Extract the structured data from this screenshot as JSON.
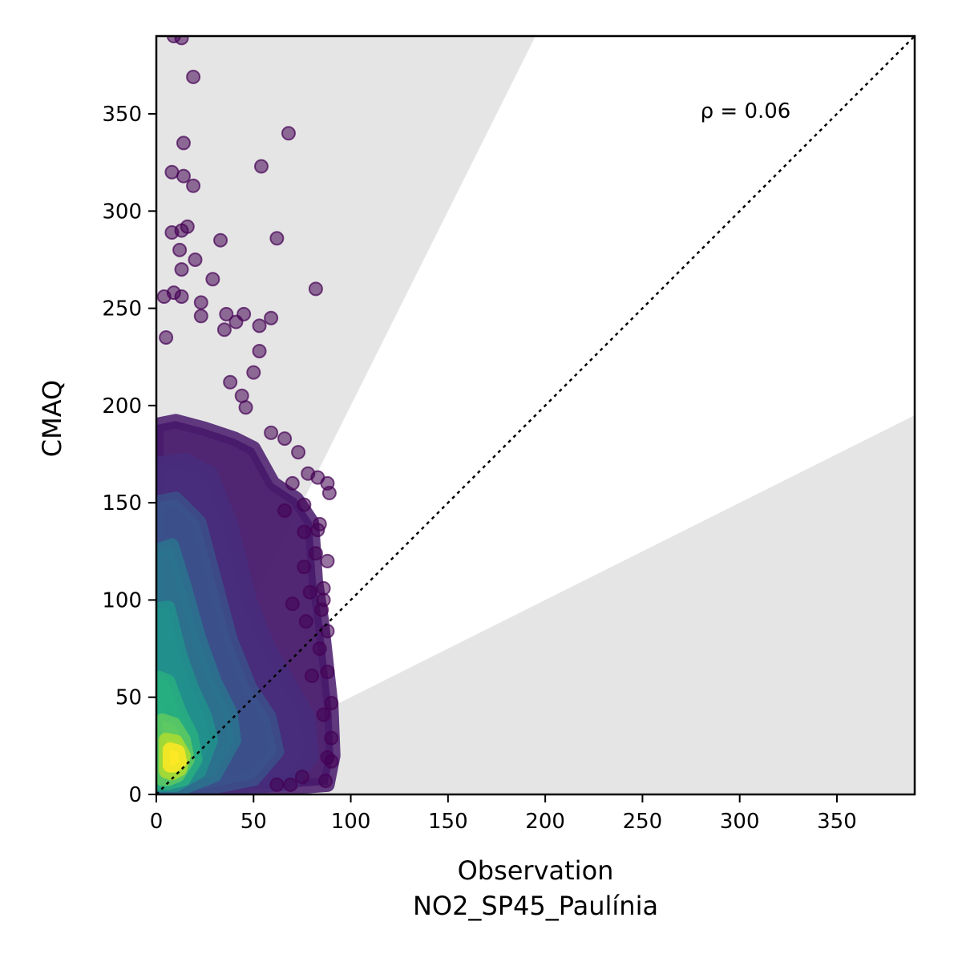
{
  "chart_data": {
    "type": "scatter",
    "title": "",
    "xlabel": "Observation",
    "xlabel_sub": "NO2_SP45_Paulínia",
    "ylabel": "CMAQ",
    "xlim": [
      0,
      390
    ],
    "ylim": [
      0,
      390
    ],
    "xticks": [
      0,
      50,
      100,
      150,
      200,
      250,
      300,
      350
    ],
    "yticks": [
      0,
      50,
      100,
      150,
      200,
      250,
      300,
      350
    ],
    "xtick_labels": [
      "0",
      "50",
      "100",
      "150",
      "200",
      "250",
      "300",
      "350"
    ],
    "ytick_labels": [
      "0",
      "50",
      "100",
      "150",
      "200",
      "250",
      "300",
      "350"
    ],
    "grid": false,
    "annotation": "ρ = 0.06",
    "reference_line": {
      "style": "dotted",
      "slope": 1,
      "label": ""
    },
    "shaded_regions": {
      "description": "outside factor-of-2 band",
      "upper_slope": 2,
      "lower_slope": 0.5,
      "color": "#e5e5e5"
    },
    "colormap": "viridis",
    "point_color_low_density": "#440154",
    "point_color_high_density": "#fde725",
    "outlier_points": [
      {
        "x": 9,
        "y": 390
      },
      {
        "x": 13,
        "y": 389
      },
      {
        "x": 19,
        "y": 369
      },
      {
        "x": 68,
        "y": 340
      },
      {
        "x": 14,
        "y": 335
      },
      {
        "x": 54,
        "y": 323
      },
      {
        "x": 8,
        "y": 320
      },
      {
        "x": 14,
        "y": 318
      },
      {
        "x": 19,
        "y": 313
      },
      {
        "x": 16,
        "y": 292
      },
      {
        "x": 13,
        "y": 290
      },
      {
        "x": 8,
        "y": 289
      },
      {
        "x": 62,
        "y": 286
      },
      {
        "x": 33,
        "y": 285
      },
      {
        "x": 12,
        "y": 280
      },
      {
        "x": 20,
        "y": 275
      },
      {
        "x": 13,
        "y": 270
      },
      {
        "x": 29,
        "y": 265
      },
      {
        "x": 82,
        "y": 260
      },
      {
        "x": 4,
        "y": 256
      },
      {
        "x": 9,
        "y": 258
      },
      {
        "x": 13,
        "y": 256
      },
      {
        "x": 23,
        "y": 253
      },
      {
        "x": 36,
        "y": 247
      },
      {
        "x": 45,
        "y": 247
      },
      {
        "x": 23,
        "y": 246
      },
      {
        "x": 59,
        "y": 245
      },
      {
        "x": 41,
        "y": 243
      },
      {
        "x": 53,
        "y": 241
      },
      {
        "x": 35,
        "y": 239
      },
      {
        "x": 5,
        "y": 235
      },
      {
        "x": 53,
        "y": 228
      },
      {
        "x": 50,
        "y": 217
      },
      {
        "x": 38,
        "y": 212
      },
      {
        "x": 44,
        "y": 205
      },
      {
        "x": 46,
        "y": 199
      },
      {
        "x": 59,
        "y": 186
      },
      {
        "x": 66,
        "y": 183
      },
      {
        "x": 73,
        "y": 176
      },
      {
        "x": 78,
        "y": 165
      },
      {
        "x": 83,
        "y": 163
      },
      {
        "x": 88,
        "y": 160
      },
      {
        "x": 70,
        "y": 160
      },
      {
        "x": 89,
        "y": 155
      },
      {
        "x": 76,
        "y": 149
      },
      {
        "x": 66,
        "y": 146
      },
      {
        "x": 84,
        "y": 139
      },
      {
        "x": 83,
        "y": 136
      },
      {
        "x": 76,
        "y": 135
      },
      {
        "x": 82,
        "y": 124
      },
      {
        "x": 88,
        "y": 120
      },
      {
        "x": 76,
        "y": 117
      },
      {
        "x": 86,
        "y": 106
      },
      {
        "x": 79,
        "y": 104
      },
      {
        "x": 86,
        "y": 100
      },
      {
        "x": 85,
        "y": 95
      },
      {
        "x": 70,
        "y": 98
      },
      {
        "x": 77,
        "y": 89
      },
      {
        "x": 88,
        "y": 84
      },
      {
        "x": 84,
        "y": 75
      },
      {
        "x": 88,
        "y": 63
      },
      {
        "x": 80,
        "y": 61
      },
      {
        "x": 90,
        "y": 47
      },
      {
        "x": 86,
        "y": 41
      },
      {
        "x": 90,
        "y": 29
      },
      {
        "x": 88,
        "y": 19
      },
      {
        "x": 90,
        "y": 17
      },
      {
        "x": 87,
        "y": 7
      },
      {
        "x": 75,
        "y": 9
      },
      {
        "x": 69,
        "y": 5
      },
      {
        "x": 62,
        "y": 5
      }
    ]
  }
}
